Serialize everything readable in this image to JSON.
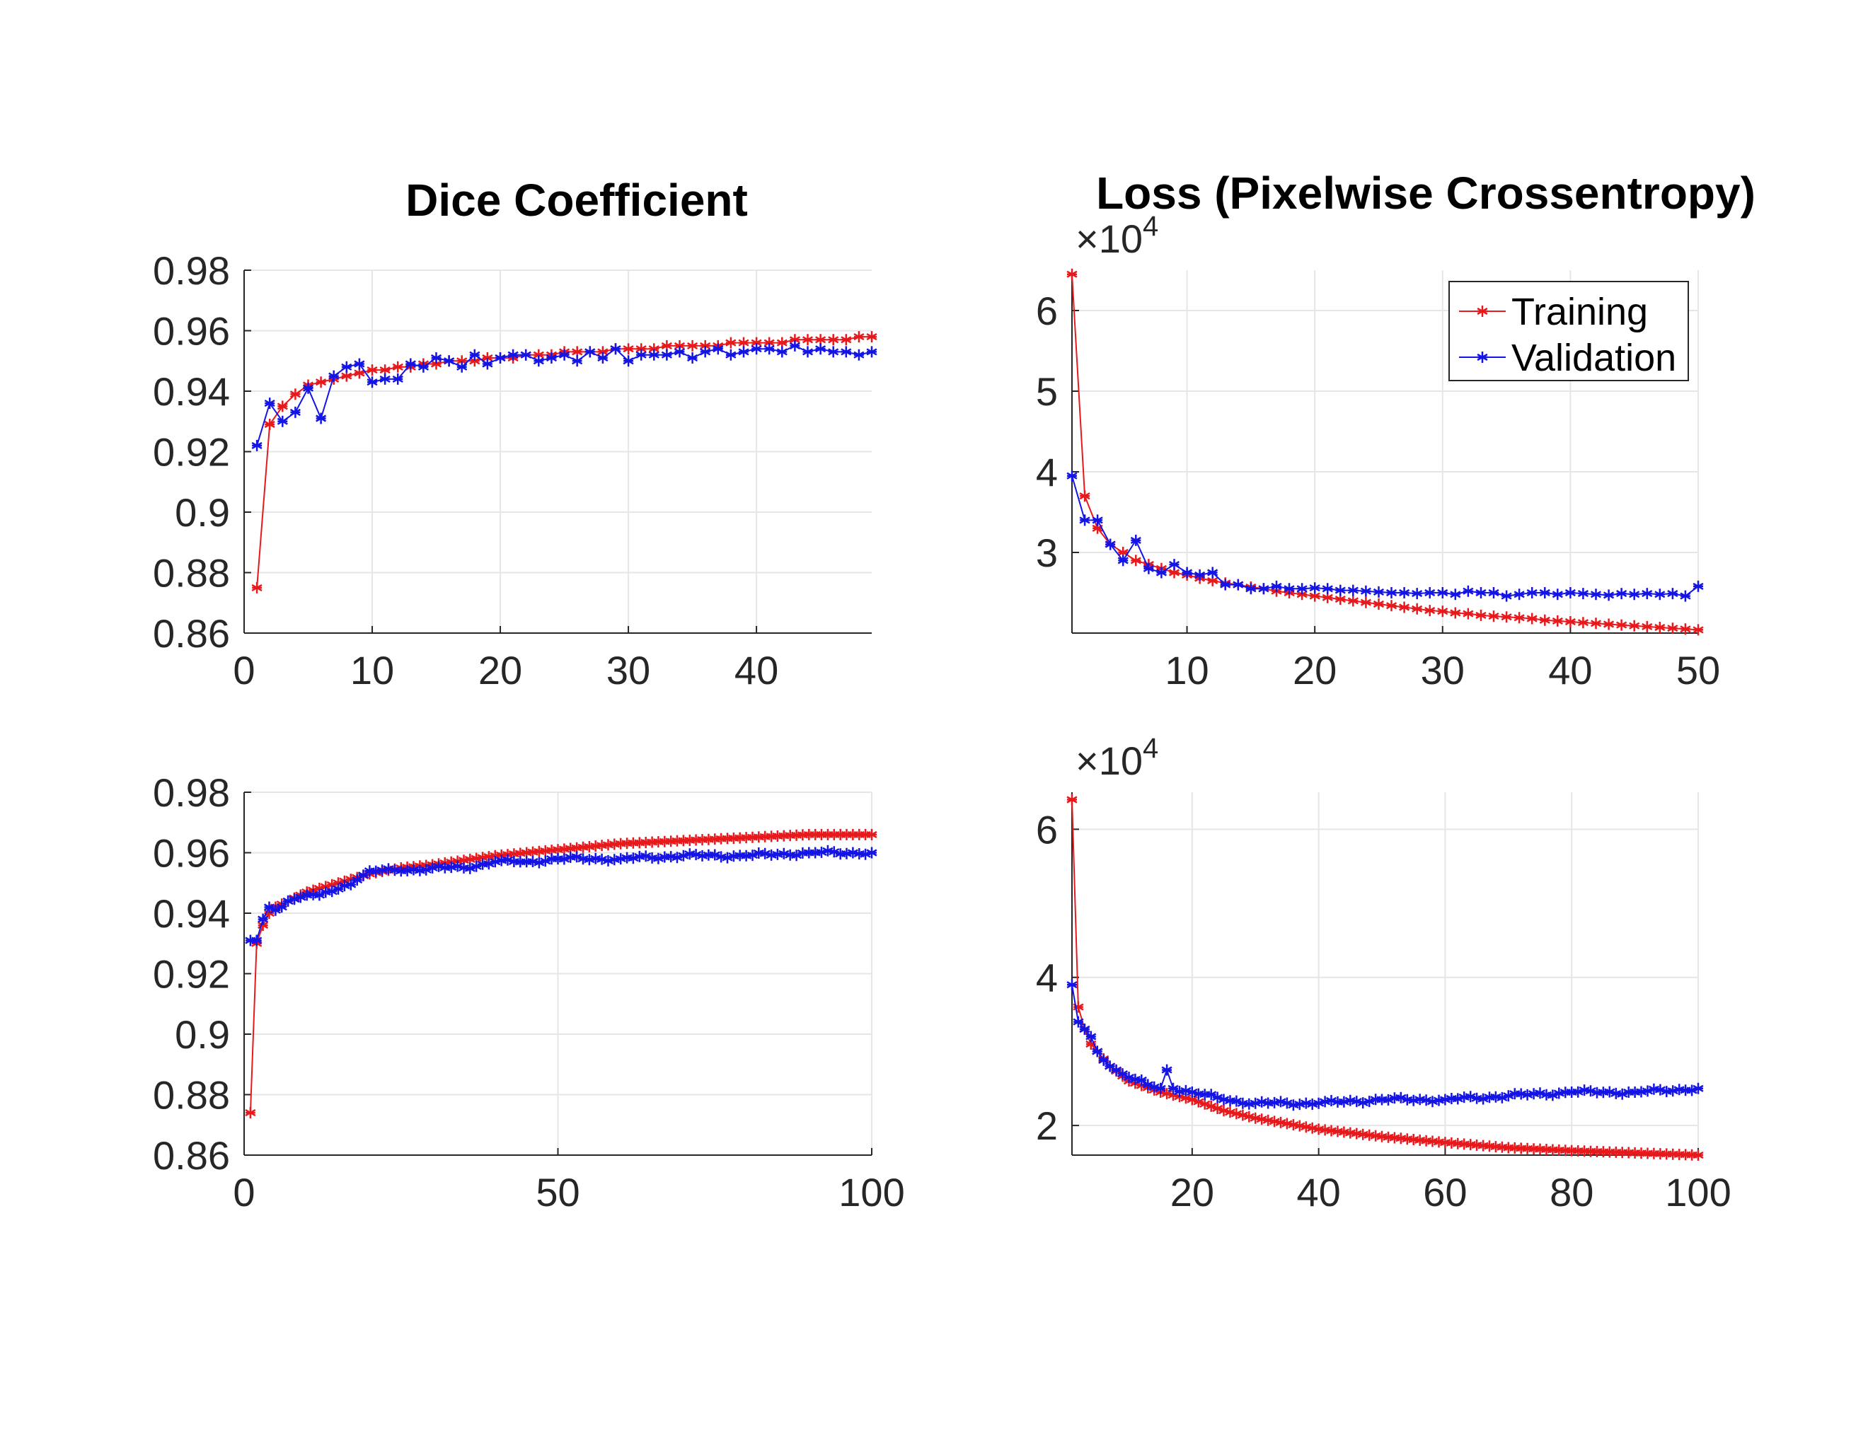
{
  "figure": {
    "titles": {
      "dice": "Dice Coefficient",
      "loss": "Loss (Pixelwise Crossentropy)"
    },
    "colors": {
      "training": "#e8191c",
      "validation": "#1414e6",
      "grid": "#e6e6e6",
      "axis": "#262626"
    },
    "legend": {
      "entries": [
        "Training",
        "Validation"
      ],
      "placement": "top-right",
      "panel": "loss-top"
    }
  },
  "chart_data": [
    {
      "id": "dice-top",
      "type": "line",
      "marker": "asterisk",
      "xlim": [
        0,
        49
      ],
      "ylim": [
        0.86,
        0.98
      ],
      "xticks": [
        0,
        10,
        20,
        30,
        40
      ],
      "yticks": [
        0.86,
        0.88,
        0.9,
        0.92,
        0.94,
        0.96,
        0.98
      ],
      "ytick_labels": [
        "0.86",
        "0.88",
        "0.9",
        "0.92",
        "0.94",
        "0.96",
        "0.98"
      ],
      "grid": true,
      "series": [
        {
          "name": "Training",
          "x_start": 1,
          "values": [
            0.875,
            0.929,
            0.935,
            0.939,
            0.942,
            0.943,
            0.944,
            0.945,
            0.946,
            0.947,
            0.947,
            0.948,
            0.948,
            0.949,
            0.949,
            0.95,
            0.95,
            0.95,
            0.951,
            0.951,
            0.951,
            0.952,
            0.952,
            0.952,
            0.953,
            0.953,
            0.953,
            0.953,
            0.954,
            0.954,
            0.954,
            0.954,
            0.955,
            0.955,
            0.955,
            0.955,
            0.955,
            0.956,
            0.956,
            0.956,
            0.956,
            0.956,
            0.957,
            0.957,
            0.957,
            0.957,
            0.957,
            0.958,
            0.958
          ]
        },
        {
          "name": "Validation",
          "x_start": 1,
          "values": [
            0.922,
            0.936,
            0.93,
            0.933,
            0.941,
            0.931,
            0.945,
            0.948,
            0.949,
            0.943,
            0.944,
            0.944,
            0.949,
            0.948,
            0.951,
            0.95,
            0.948,
            0.952,
            0.949,
            0.951,
            0.952,
            0.952,
            0.95,
            0.951,
            0.952,
            0.95,
            0.953,
            0.951,
            0.954,
            0.95,
            0.952,
            0.952,
            0.952,
            0.953,
            0.951,
            0.953,
            0.954,
            0.952,
            0.953,
            0.954,
            0.954,
            0.953,
            0.955,
            0.953,
            0.954,
            0.953,
            0.953,
            0.952,
            0.953
          ]
        }
      ]
    },
    {
      "id": "loss-top",
      "type": "line",
      "marker": "asterisk",
      "xlim": [
        1,
        50
      ],
      "ylim": [
        2.0,
        6.5
      ],
      "xticks": [
        10,
        20,
        30,
        40,
        50
      ],
      "yticks": [
        3,
        4,
        5,
        6
      ],
      "ytick_labels": [
        "3",
        "4",
        "5",
        "6"
      ],
      "y_exponent_label": "×10",
      "y_exponent": "4",
      "grid": true,
      "series": [
        {
          "name": "Training",
          "x_start": 1,
          "values": [
            6.45,
            3.7,
            3.3,
            3.1,
            3.0,
            2.9,
            2.85,
            2.8,
            2.75,
            2.72,
            2.68,
            2.65,
            2.62,
            2.6,
            2.57,
            2.55,
            2.52,
            2.5,
            2.48,
            2.46,
            2.44,
            2.42,
            2.4,
            2.38,
            2.36,
            2.34,
            2.32,
            2.3,
            2.28,
            2.27,
            2.25,
            2.24,
            2.22,
            2.21,
            2.2,
            2.19,
            2.18,
            2.16,
            2.15,
            2.14,
            2.13,
            2.12,
            2.11,
            2.1,
            2.09,
            2.08,
            2.07,
            2.06,
            2.05,
            2.04
          ]
        },
        {
          "name": "Validation",
          "x_start": 1,
          "values": [
            3.95,
            3.4,
            3.4,
            3.1,
            2.9,
            3.15,
            2.8,
            2.75,
            2.85,
            2.75,
            2.72,
            2.75,
            2.6,
            2.6,
            2.55,
            2.55,
            2.58,
            2.55,
            2.55,
            2.56,
            2.55,
            2.53,
            2.53,
            2.52,
            2.51,
            2.5,
            2.5,
            2.49,
            2.5,
            2.5,
            2.48,
            2.52,
            2.5,
            2.5,
            2.46,
            2.48,
            2.5,
            2.5,
            2.48,
            2.5,
            2.49,
            2.48,
            2.47,
            2.49,
            2.48,
            2.49,
            2.48,
            2.49,
            2.46,
            2.58
          ]
        }
      ]
    },
    {
      "id": "dice-bottom",
      "type": "line",
      "marker": "asterisk",
      "xlim": [
        0,
        100
      ],
      "ylim": [
        0.86,
        0.98
      ],
      "xticks": [
        0,
        50,
        100
      ],
      "yticks": [
        0.86,
        0.88,
        0.9,
        0.92,
        0.94,
        0.96,
        0.98
      ],
      "ytick_labels": [
        "0.86",
        "0.88",
        "0.9",
        "0.92",
        "0.94",
        "0.96",
        "0.98"
      ],
      "grid": true,
      "series": [
        {
          "name": "Training",
          "formula": "dice_train_long",
          "x": [
            1,
            2,
            3,
            4,
            5,
            7,
            10,
            15,
            20,
            25,
            30,
            40,
            50,
            60,
            70,
            80,
            90,
            100
          ],
          "values": [
            0.874,
            0.93,
            0.936,
            0.94,
            0.942,
            0.944,
            0.947,
            0.95,
            0.953,
            0.955,
            0.956,
            0.959,
            0.961,
            0.963,
            0.964,
            0.965,
            0.966,
            0.966
          ]
        },
        {
          "name": "Validation",
          "x": [
            1,
            2,
            3,
            4,
            5,
            7,
            10,
            12,
            15,
            18,
            20,
            25,
            30,
            35,
            40,
            45,
            50,
            60,
            70,
            80,
            90,
            100
          ],
          "values": [
            0.931,
            0.931,
            0.938,
            0.942,
            0.941,
            0.944,
            0.946,
            0.946,
            0.948,
            0.951,
            0.954,
            0.954,
            0.955,
            0.955,
            0.957,
            0.957,
            0.958,
            0.958,
            0.959,
            0.959,
            0.96,
            0.96
          ]
        }
      ]
    },
    {
      "id": "loss-bottom",
      "type": "line",
      "marker": "asterisk",
      "xlim": [
        1,
        100
      ],
      "ylim": [
        1.6,
        6.5
      ],
      "xticks": [
        20,
        40,
        60,
        80,
        100
      ],
      "yticks": [
        2,
        4,
        6
      ],
      "ytick_labels": [
        "2",
        "4",
        "6"
      ],
      "y_exponent_label": "×10",
      "y_exponent": "4",
      "grid": true,
      "series": [
        {
          "name": "Training",
          "x": [
            1,
            2,
            3,
            4,
            5,
            7,
            10,
            15,
            20,
            25,
            30,
            40,
            50,
            60,
            70,
            80,
            90,
            100
          ],
          "values": [
            6.4,
            3.6,
            3.3,
            3.1,
            3.0,
            2.8,
            2.6,
            2.45,
            2.35,
            2.2,
            2.1,
            1.95,
            1.85,
            1.77,
            1.7,
            1.66,
            1.63,
            1.6
          ]
        },
        {
          "name": "Validation",
          "x": [
            1,
            2,
            3,
            4,
            5,
            7,
            10,
            13,
            15,
            16,
            17,
            20,
            25,
            30,
            40,
            50,
            60,
            70,
            80,
            90,
            100
          ],
          "values": [
            3.9,
            3.4,
            3.3,
            3.2,
            3.0,
            2.8,
            2.65,
            2.55,
            2.5,
            2.75,
            2.5,
            2.45,
            2.35,
            2.3,
            2.3,
            2.35,
            2.35,
            2.4,
            2.45,
            2.45,
            2.5
          ]
        }
      ]
    }
  ]
}
